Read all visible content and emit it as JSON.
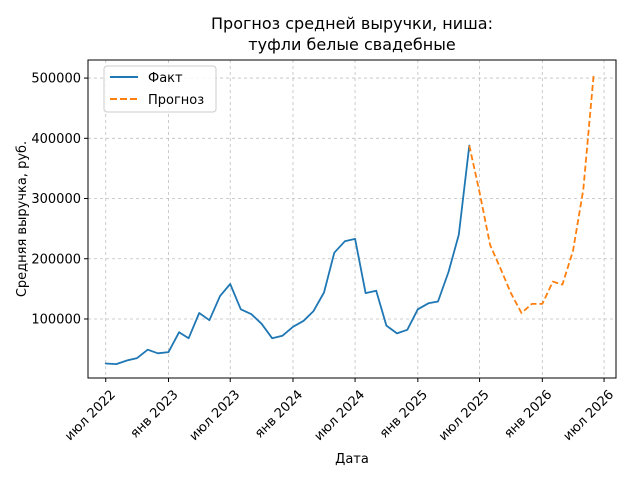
{
  "chart_data": {
    "type": "line",
    "title_lines": [
      "Прогноз средней выручки, ниша:",
      "туфли белые свадебные"
    ],
    "xlabel": "Дата",
    "ylabel": "Средняя выручка, руб.",
    "x_range": [
      "2022-05-10",
      "2026-08-05"
    ],
    "ylim": [
      2000,
      530000
    ],
    "yticks": [
      100000,
      200000,
      300000,
      400000,
      500000
    ],
    "ytick_labels": [
      "100000",
      "200000",
      "300000",
      "400000",
      "500000"
    ],
    "xticks": [
      "2022-07-01",
      "2023-01-01",
      "2023-07-01",
      "2024-01-01",
      "2024-07-01",
      "2025-01-01",
      "2025-07-01",
      "2026-01-01",
      "2026-07-01"
    ],
    "xtick_labels": [
      "июл 2022",
      "янв 2023",
      "июл 2023",
      "янв 2024",
      "июл 2024",
      "янв 2025",
      "июл 2025",
      "янв 2026",
      "июл 2026"
    ],
    "grid": true,
    "legend_position": "top-left",
    "series": [
      {
        "name": "Факт",
        "color": "#1f77b4",
        "style": "solid",
        "x": [
          "2022-07-01",
          "2022-08-01",
          "2022-09-01",
          "2022-10-01",
          "2022-11-01",
          "2022-12-01",
          "2023-01-01",
          "2023-02-01",
          "2023-03-01",
          "2023-04-01",
          "2023-05-01",
          "2023-06-01",
          "2023-07-01",
          "2023-08-01",
          "2023-09-01",
          "2023-10-01",
          "2023-11-01",
          "2023-12-01",
          "2024-01-01",
          "2024-02-01",
          "2024-03-01",
          "2024-04-01",
          "2024-05-01",
          "2024-06-01",
          "2024-07-01",
          "2024-08-01",
          "2024-09-01",
          "2024-10-01",
          "2024-11-01",
          "2024-12-01",
          "2025-01-01",
          "2025-02-01",
          "2025-03-01",
          "2025-04-01",
          "2025-05-01",
          "2025-06-01"
        ],
        "y": [
          26000,
          25000,
          31000,
          35000,
          49000,
          43000,
          45000,
          78000,
          68000,
          110000,
          98000,
          138000,
          158000,
          116000,
          108000,
          92000,
          68000,
          72000,
          87000,
          97000,
          113000,
          144000,
          210000,
          229000,
          233000,
          143000,
          147000,
          89000,
          76000,
          82000,
          116000,
          126000,
          129000,
          178000,
          240000,
          388000
        ]
      },
      {
        "name": "Прогноз",
        "color": "#ff7f0e",
        "style": "dashed",
        "x": [
          "2025-06-01",
          "2025-07-01",
          "2025-08-01",
          "2025-09-01",
          "2025-10-01",
          "2025-11-01",
          "2025-12-01",
          "2026-01-01",
          "2026-02-01",
          "2026-03-01",
          "2026-04-01",
          "2026-05-01",
          "2026-06-01"
        ],
        "y": [
          388000,
          310000,
          223000,
          183000,
          143000,
          110000,
          125000,
          125000,
          162000,
          157000,
          213000,
          315000,
          508000
        ]
      }
    ]
  }
}
